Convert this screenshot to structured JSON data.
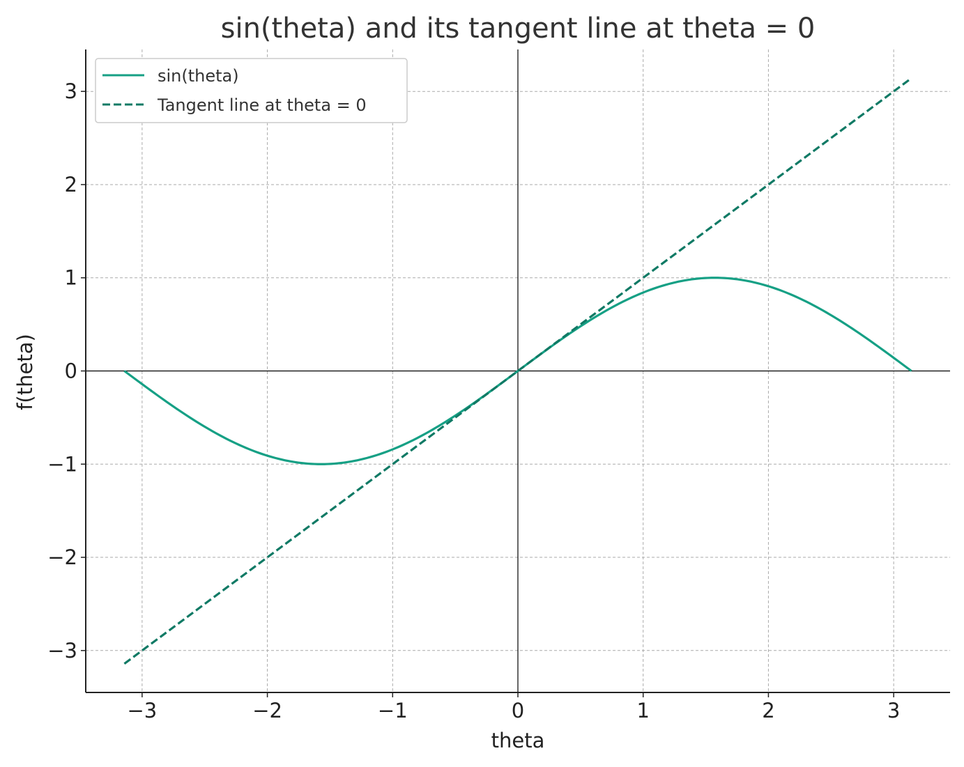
{
  "chart_data": {
    "type": "line",
    "title": "sin(theta) and its tangent line at theta = 0",
    "xlabel": "theta",
    "ylabel": "f(theta)",
    "xlim": [
      -3.45,
      3.45
    ],
    "ylim": [
      -3.45,
      3.45
    ],
    "x_ticks": [
      -3,
      -2,
      -1,
      0,
      1,
      2,
      3
    ],
    "y_ticks": [
      -3,
      -2,
      -1,
      0,
      1,
      2,
      3
    ],
    "x_tick_labels": [
      "−3",
      "−2",
      "−1",
      "0",
      "1",
      "2",
      "3"
    ],
    "y_tick_labels": [
      "−3",
      "−2",
      "−1",
      "0",
      "1",
      "2",
      "3"
    ],
    "grid": true,
    "grid_style": "dashed",
    "reference_lines": [
      "x = 0",
      "y = 0"
    ],
    "legend_position": "top-left",
    "series": [
      {
        "name": "sin(theta)",
        "function": "sin",
        "x_range": [
          -3.1416,
          3.1416
        ],
        "color": "#16a085",
        "style": "solid",
        "x": [
          -3.1416,
          -2.618,
          -2.0944,
          -1.5708,
          -1.0472,
          -0.5236,
          0,
          0.5236,
          1.0472,
          1.5708,
          2.0944,
          2.618,
          3.1416
        ],
        "y": [
          0,
          -0.5,
          -0.866,
          -1,
          -0.866,
          -0.5,
          0,
          0.5,
          0.866,
          1,
          0.866,
          0.5,
          0
        ]
      },
      {
        "name": "Tangent line at theta = 0",
        "function": "identity",
        "x_range": [
          -3.1416,
          3.1416
        ],
        "color": "#117a65",
        "style": "dashed",
        "x": [
          -3.1416,
          3.1416
        ],
        "y": [
          -3.1416,
          3.1416
        ]
      }
    ]
  }
}
